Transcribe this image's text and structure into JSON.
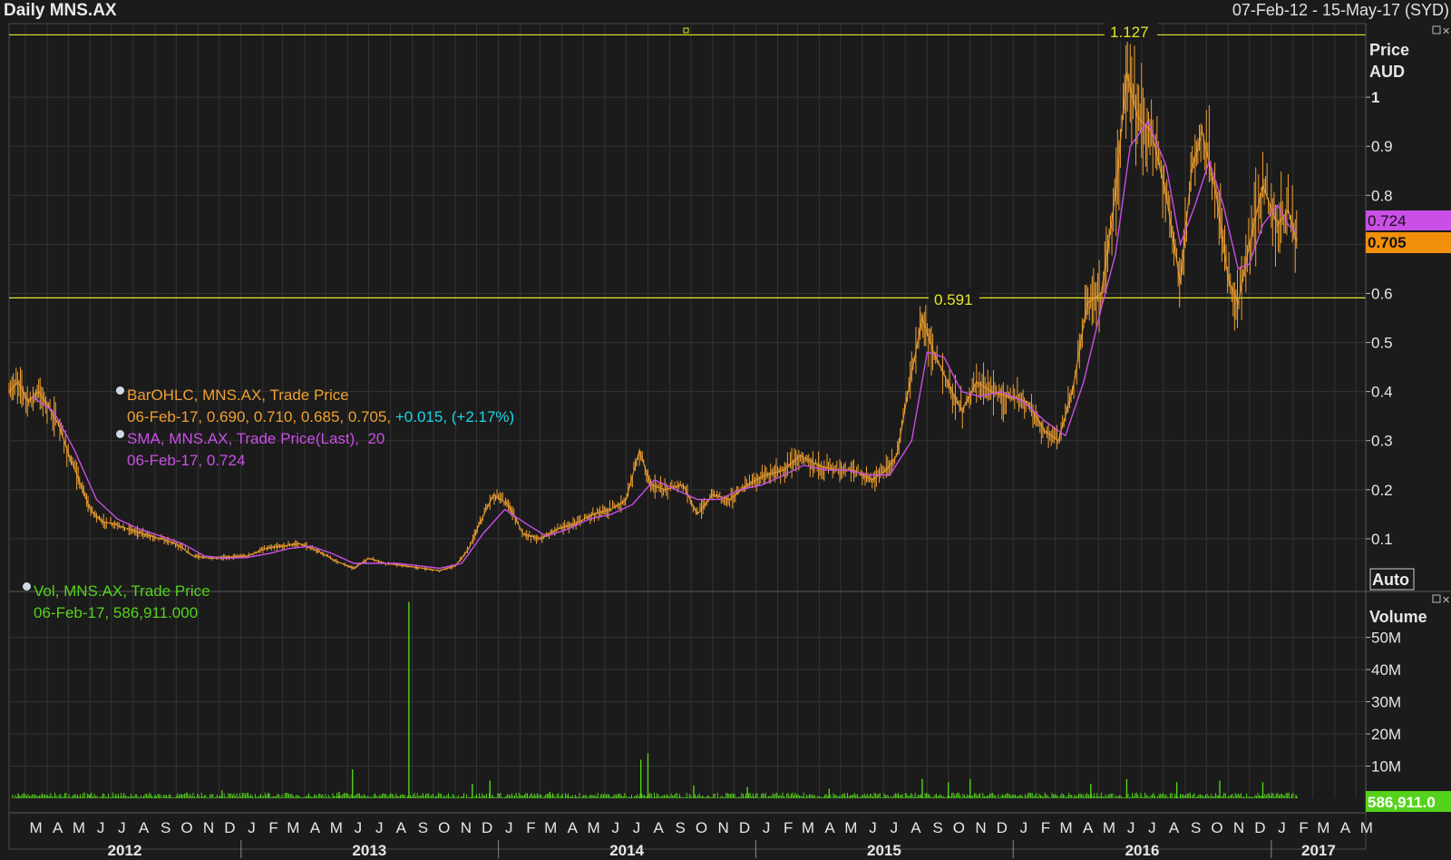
{
  "header": {
    "title": "Daily MNS.AX",
    "range": "07-Feb-12 - 15-May-17 (SYD)"
  },
  "price_panel": {
    "axis_title_1": "Price",
    "axis_title_2": "AUD",
    "auto_label": "Auto",
    "last_sma_tag": "0.724",
    "last_close_tag": "0.705",
    "hline_top_label": "1.127",
    "hline_mid_label": "0.591",
    "legend": {
      "bar_title": "BarOHLC, MNS.AX, Trade Price",
      "bar_values": "06-Feb-17, 0.690, 0.710, 0.685, 0.705,",
      "bar_change": "+0.015, (+2.17%)",
      "sma_title": "SMA, MNS.AX, Trade Price(Last),",
      "sma_period": "20",
      "sma_values": "06-Feb-17, 0.724"
    }
  },
  "volume_panel": {
    "axis_title": "Volume",
    "last_tag": "586,911.0",
    "legend": {
      "title": "Vol, MNS.AX, Trade Price",
      "values": "06-Feb-17, 586,911.000"
    }
  },
  "colors": {
    "background": "#1b1b1b",
    "grid": "#333333",
    "price_bars": "#f0a030",
    "sma": "#c94fe6",
    "volume": "#55d21c",
    "hline": "#e6e62a",
    "change": "#1ad7e8"
  },
  "chart_data": [
    {
      "type": "line",
      "title": "Daily MNS.AX",
      "ylabel": "Price AUD",
      "y_scale": "linear",
      "ylim": [
        0,
        1.15
      ],
      "y_ticks": [
        0.1,
        0.2,
        0.3,
        0.4,
        0.5,
        0.6,
        0.7,
        0.8,
        0.9,
        1
      ],
      "y_tick_labels": [
        "0.1",
        "0.2",
        "0.3",
        "0.4",
        "0.5",
        "0.6",
        "0.7",
        "0.8",
        "0.9",
        "1"
      ],
      "x_range": [
        "2012-02-07",
        "2017-05-15"
      ],
      "month_labels": [
        "M",
        "A",
        "M",
        "J",
        "J",
        "A",
        "S",
        "O",
        "N",
        "D",
        "J",
        "F",
        "M",
        "A",
        "M",
        "J",
        "J",
        "A",
        "S",
        "O",
        "N",
        "D",
        "J",
        "F",
        "M",
        "A",
        "M",
        "J",
        "J",
        "A",
        "S",
        "O",
        "N",
        "D",
        "J",
        "F",
        "M",
        "A",
        "M",
        "J",
        "J",
        "A",
        "S",
        "O",
        "N",
        "D",
        "J",
        "F",
        "M",
        "A",
        "M",
        "J",
        "J",
        "A",
        "S",
        "O",
        "N",
        "D",
        "J",
        "F",
        "M",
        "A",
        "M"
      ],
      "year_labels": [
        "2012",
        "2013",
        "2014",
        "2015",
        "2016",
        "2017"
      ],
      "horizontal_lines": [
        1.127,
        0.591
      ],
      "grid": true,
      "series": [
        {
          "kind": "ohlc_bars_close",
          "points": [
            [
              "2012-02-07",
              0.4
            ],
            [
              "2012-02-20",
              0.42
            ],
            [
              "2012-03-05",
              0.38
            ],
            [
              "2012-03-20",
              0.4
            ],
            [
              "2012-04-03",
              0.37
            ],
            [
              "2012-04-18",
              0.33
            ],
            [
              "2012-05-02",
              0.27
            ],
            [
              "2012-05-16",
              0.22
            ],
            [
              "2012-06-01",
              0.16
            ],
            [
              "2012-06-18",
              0.135
            ],
            [
              "2012-07-05",
              0.13
            ],
            [
              "2012-07-25",
              0.12
            ],
            [
              "2012-08-15",
              0.11
            ],
            [
              "2012-09-10",
              0.1
            ],
            [
              "2012-10-01",
              0.09
            ],
            [
              "2012-10-25",
              0.065
            ],
            [
              "2012-11-20",
              0.06
            ],
            [
              "2012-12-15",
              0.063
            ],
            [
              "2013-01-10",
              0.065
            ],
            [
              "2013-02-05",
              0.08
            ],
            [
              "2013-03-01",
              0.085
            ],
            [
              "2013-03-25",
              0.09
            ],
            [
              "2013-04-20",
              0.075
            ],
            [
              "2013-05-15",
              0.055
            ],
            [
              "2013-06-10",
              0.04
            ],
            [
              "2013-07-01",
              0.06
            ],
            [
              "2013-07-25",
              0.05
            ],
            [
              "2013-08-20",
              0.045
            ],
            [
              "2013-09-15",
              0.04
            ],
            [
              "2013-10-10",
              0.035
            ],
            [
              "2013-11-01",
              0.045
            ],
            [
              "2013-11-20",
              0.08
            ],
            [
              "2013-12-05",
              0.13
            ],
            [
              "2013-12-25",
              0.19
            ],
            [
              "2014-01-15",
              0.17
            ],
            [
              "2014-02-05",
              0.11
            ],
            [
              "2014-03-01",
              0.1
            ],
            [
              "2014-03-25",
              0.12
            ],
            [
              "2014-04-20",
              0.13
            ],
            [
              "2014-05-15",
              0.15
            ],
            [
              "2014-06-10",
              0.16
            ],
            [
              "2014-07-01",
              0.18
            ],
            [
              "2014-07-20",
              0.28
            ],
            [
              "2014-08-05",
              0.21
            ],
            [
              "2014-08-25",
              0.2
            ],
            [
              "2014-09-20",
              0.21
            ],
            [
              "2014-10-10",
              0.15
            ],
            [
              "2014-11-01",
              0.19
            ],
            [
              "2014-11-25",
              0.18
            ],
            [
              "2014-12-20",
              0.21
            ],
            [
              "2015-01-15",
              0.23
            ],
            [
              "2015-02-10",
              0.24
            ],
            [
              "2015-03-05",
              0.27
            ],
            [
              "2015-03-30",
              0.25
            ],
            [
              "2015-04-25",
              0.24
            ],
            [
              "2015-05-20",
              0.24
            ],
            [
              "2015-06-15",
              0.22
            ],
            [
              "2015-07-05",
              0.24
            ],
            [
              "2015-07-20",
              0.27
            ],
            [
              "2015-08-05",
              0.4
            ],
            [
              "2015-08-25",
              0.55
            ],
            [
              "2015-09-10",
              0.48
            ],
            [
              "2015-09-30",
              0.42
            ],
            [
              "2015-10-20",
              0.36
            ],
            [
              "2015-11-10",
              0.42
            ],
            [
              "2015-12-01",
              0.4
            ],
            [
              "2015-12-25",
              0.39
            ],
            [
              "2016-01-20",
              0.38
            ],
            [
              "2016-02-15",
              0.32
            ],
            [
              "2016-03-05",
              0.3
            ],
            [
              "2016-03-25",
              0.4
            ],
            [
              "2016-04-15",
              0.58
            ],
            [
              "2016-05-05",
              0.6
            ],
            [
              "2016-05-25",
              0.8
            ],
            [
              "2016-06-10",
              1.05
            ],
            [
              "2016-06-25",
              0.96
            ],
            [
              "2016-07-15",
              0.93
            ],
            [
              "2016-08-05",
              0.8
            ],
            [
              "2016-08-25",
              0.62
            ],
            [
              "2016-09-10",
              0.85
            ],
            [
              "2016-09-25",
              0.93
            ],
            [
              "2016-10-15",
              0.8
            ],
            [
              "2016-11-01",
              0.63
            ],
            [
              "2016-11-15",
              0.58
            ],
            [
              "2016-12-01",
              0.7
            ],
            [
              "2016-12-20",
              0.82
            ],
            [
              "2017-01-10",
              0.74
            ],
            [
              "2017-01-25",
              0.77
            ],
            [
              "2017-02-06",
              0.705
            ]
          ]
        },
        {
          "name": "SMA, MNS.AX, Trade Price(Last), 20",
          "points": [
            [
              "2012-03-10",
              0.39
            ],
            [
              "2012-04-10",
              0.36
            ],
            [
              "2012-05-10",
              0.28
            ],
            [
              "2012-06-10",
              0.18
            ],
            [
              "2012-07-10",
              0.14
            ],
            [
              "2012-08-10",
              0.12
            ],
            [
              "2012-09-10",
              0.105
            ],
            [
              "2012-10-10",
              0.09
            ],
            [
              "2012-11-10",
              0.065
            ],
            [
              "2012-12-10",
              0.06
            ],
            [
              "2013-01-10",
              0.062
            ],
            [
              "2013-02-10",
              0.07
            ],
            [
              "2013-03-10",
              0.08
            ],
            [
              "2013-04-10",
              0.085
            ],
            [
              "2013-05-10",
              0.07
            ],
            [
              "2013-06-10",
              0.05
            ],
            [
              "2013-07-10",
              0.05
            ],
            [
              "2013-08-10",
              0.05
            ],
            [
              "2013-09-10",
              0.045
            ],
            [
              "2013-10-10",
              0.04
            ],
            [
              "2013-11-10",
              0.05
            ],
            [
              "2013-12-10",
              0.11
            ],
            [
              "2014-01-10",
              0.16
            ],
            [
              "2014-02-10",
              0.13
            ],
            [
              "2014-03-10",
              0.105
            ],
            [
              "2014-04-10",
              0.12
            ],
            [
              "2014-05-10",
              0.14
            ],
            [
              "2014-06-10",
              0.15
            ],
            [
              "2014-07-10",
              0.17
            ],
            [
              "2014-08-10",
              0.22
            ],
            [
              "2014-09-10",
              0.2
            ],
            [
              "2014-10-10",
              0.18
            ],
            [
              "2014-11-10",
              0.18
            ],
            [
              "2014-12-10",
              0.2
            ],
            [
              "2015-01-10",
              0.21
            ],
            [
              "2015-02-10",
              0.23
            ],
            [
              "2015-03-10",
              0.25
            ],
            [
              "2015-04-10",
              0.24
            ],
            [
              "2015-05-10",
              0.24
            ],
            [
              "2015-06-10",
              0.23
            ],
            [
              "2015-07-10",
              0.23
            ],
            [
              "2015-08-10",
              0.3
            ],
            [
              "2015-09-01",
              0.48
            ],
            [
              "2015-09-25",
              0.47
            ],
            [
              "2015-10-20",
              0.4
            ],
            [
              "2015-11-15",
              0.39
            ],
            [
              "2015-12-15",
              0.4
            ],
            [
              "2016-01-15",
              0.38
            ],
            [
              "2016-02-15",
              0.34
            ],
            [
              "2016-03-15",
              0.31
            ],
            [
              "2016-04-10",
              0.42
            ],
            [
              "2016-05-05",
              0.57
            ],
            [
              "2016-05-25",
              0.68
            ],
            [
              "2016-06-15",
              0.9
            ],
            [
              "2016-07-10",
              0.95
            ],
            [
              "2016-08-05",
              0.86
            ],
            [
              "2016-08-25",
              0.7
            ],
            [
              "2016-09-15",
              0.78
            ],
            [
              "2016-10-05",
              0.87
            ],
            [
              "2016-10-25",
              0.78
            ],
            [
              "2016-11-15",
              0.65
            ],
            [
              "2016-12-01",
              0.66
            ],
            [
              "2016-12-20",
              0.74
            ],
            [
              "2017-01-10",
              0.78
            ],
            [
              "2017-01-25",
              0.74
            ],
            [
              "2017-02-06",
              0.724
            ]
          ]
        }
      ]
    },
    {
      "type": "bar",
      "ylabel": "Volume",
      "y_ticks": [
        10000000,
        20000000,
        30000000,
        40000000,
        50000000
      ],
      "y_tick_labels": [
        "10M",
        "20M",
        "30M",
        "40M",
        "50M"
      ],
      "ylim": [
        0,
        62000000
      ],
      "series": [
        {
          "name": "Vol, MNS.AX, Trade Price",
          "points": [
            [
              "2012-02-20",
              1500000
            ],
            [
              "2012-06-01",
              1200000
            ],
            [
              "2012-09-01",
              1000000
            ],
            [
              "2012-12-05",
              2500000
            ],
            [
              "2013-02-10",
              1500000
            ],
            [
              "2013-05-20",
              2000000
            ],
            [
              "2013-06-08",
              9000000
            ],
            [
              "2013-08-27",
              61000000
            ],
            [
              "2013-11-25",
              4500000
            ],
            [
              "2013-12-20",
              5500000
            ],
            [
              "2014-03-15",
              2000000
            ],
            [
              "2014-07-22",
              12000000
            ],
            [
              "2014-08-01",
              14000000
            ],
            [
              "2014-10-05",
              4000000
            ],
            [
              "2014-12-20",
              3500000
            ],
            [
              "2015-04-15",
              3000000
            ],
            [
              "2015-08-25",
              6000000
            ],
            [
              "2015-10-01",
              5000000
            ],
            [
              "2015-11-01",
              6000000
            ],
            [
              "2016-04-20",
              4500000
            ],
            [
              "2016-06-10",
              6000000
            ],
            [
              "2016-08-20",
              5000000
            ],
            [
              "2016-10-20",
              5500000
            ],
            [
              "2016-12-20",
              5000000
            ],
            [
              "2017-02-06",
              586911
            ]
          ]
        }
      ]
    }
  ]
}
